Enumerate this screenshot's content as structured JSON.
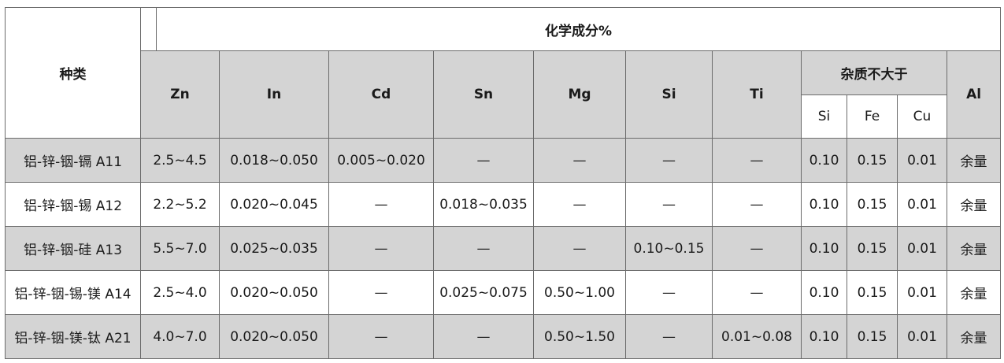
{
  "header": {
    "category": "种类",
    "composition": "化学成分%",
    "columns": [
      "Zn",
      "In",
      "Cd",
      "Sn",
      "Mg",
      "Si",
      "Ti"
    ],
    "impurity": {
      "label": "杂质不大于",
      "columns": [
        "Si",
        "Fe",
        "Cu"
      ]
    },
    "balance": "Al"
  },
  "rows": [
    {
      "name": "铝-锌-铟-镉 A11",
      "zn": "2.5~4.5",
      "in": "0.018~0.050",
      "cd": "0.005~0.020",
      "sn": "—",
      "mg": "—",
      "si": "—",
      "ti": "—",
      "imp_si": "0.10",
      "imp_fe": "0.15",
      "imp_cu": "0.01",
      "al": "余量"
    },
    {
      "name": "铝-锌-铟-锡 A12",
      "zn": "2.2~5.2",
      "in": "0.020~0.045",
      "cd": "—",
      "sn": "0.018~0.035",
      "mg": "—",
      "si": "—",
      "ti": "—",
      "imp_si": "0.10",
      "imp_fe": "0.15",
      "imp_cu": "0.01",
      "al": "余量"
    },
    {
      "name": "铝-锌-铟-硅 A13",
      "zn": "5.5~7.0",
      "in": "0.025~0.035",
      "cd": "—",
      "sn": "—",
      "mg": "—",
      "si": "0.10~0.15",
      "ti": "—",
      "imp_si": "0.10",
      "imp_fe": "0.15",
      "imp_cu": "0.01",
      "al": "余量"
    },
    {
      "name": "铝-锌-铟-锡-镁 A14",
      "zn": "2.5~4.0",
      "in": "0.020~0.050",
      "cd": "—",
      "sn": "0.025~0.075",
      "mg": "0.50~1.00",
      "si": "—",
      "ti": "—",
      "imp_si": "0.10",
      "imp_fe": "0.15",
      "imp_cu": "0.01",
      "al": "余量"
    },
    {
      "name": "铝-锌-铟-镁-钛 A21",
      "zn": "4.0~7.0",
      "in": "0.020~0.050",
      "cd": "—",
      "sn": "—",
      "mg": "0.50~1.50",
      "si": "—",
      "ti": "0.01~0.08",
      "imp_si": "0.10",
      "imp_fe": "0.15",
      "imp_cu": "0.01",
      "al": "余量"
    }
  ],
  "colors": {
    "gray_fill": "#d4d4d4",
    "border": "#6b6b6b",
    "white": "#ffffff"
  }
}
